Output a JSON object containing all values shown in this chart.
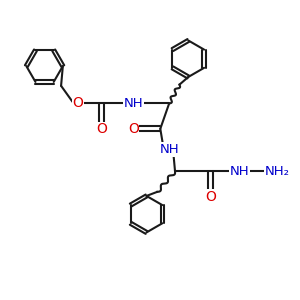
{
  "background": "#ffffff",
  "bond_color": "#1a1a1a",
  "heteroatom_color": "#0000cc",
  "oxygen_color": "#dd0000",
  "line_width": 1.5,
  "font_size": 9,
  "fig_size": [
    3.0,
    3.0
  ],
  "dpi": 100,
  "xlim": [
    0,
    10
  ],
  "ylim": [
    0,
    10
  ]
}
